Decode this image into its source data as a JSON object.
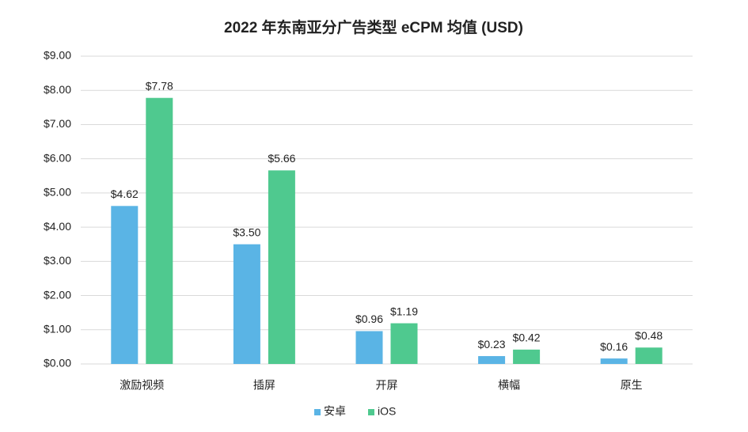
{
  "chart_data": {
    "type": "bar",
    "title": "2022 年东南亚分广告类型 eCPM 均值 (USD)",
    "categories": [
      "激励视频",
      "插屏",
      "开屏",
      "横幅",
      "原生"
    ],
    "series": [
      {
        "name": "安卓",
        "color": "#5ab4e5",
        "values": [
          4.62,
          3.5,
          0.96,
          0.23,
          0.16
        ],
        "value_labels": [
          "$4.62",
          "$3.50",
          "$0.96",
          "$0.23",
          "$0.16"
        ]
      },
      {
        "name": "iOS",
        "color": "#4fc98f",
        "values": [
          7.78,
          5.66,
          1.19,
          0.42,
          0.48
        ],
        "value_labels": [
          "$7.78",
          "$5.66",
          "$1.19",
          "$0.42",
          "$0.48"
        ]
      }
    ],
    "ylim": [
      0,
      9
    ],
    "yticks": [
      {
        "value": 0,
        "label": "$0.00"
      },
      {
        "value": 1,
        "label": "$1.00"
      },
      {
        "value": 2,
        "label": "$2.00"
      },
      {
        "value": 3,
        "label": "$3.00"
      },
      {
        "value": 4,
        "label": "$4.00"
      },
      {
        "value": 5,
        "label": "$5.00"
      },
      {
        "value": 6,
        "label": "$6.00"
      },
      {
        "value": 7,
        "label": "$7.00"
      },
      {
        "value": 8,
        "label": "$8.00"
      },
      {
        "value": 9,
        "label": "$9.00"
      }
    ],
    "grid": true,
    "legend": "bottom"
  }
}
